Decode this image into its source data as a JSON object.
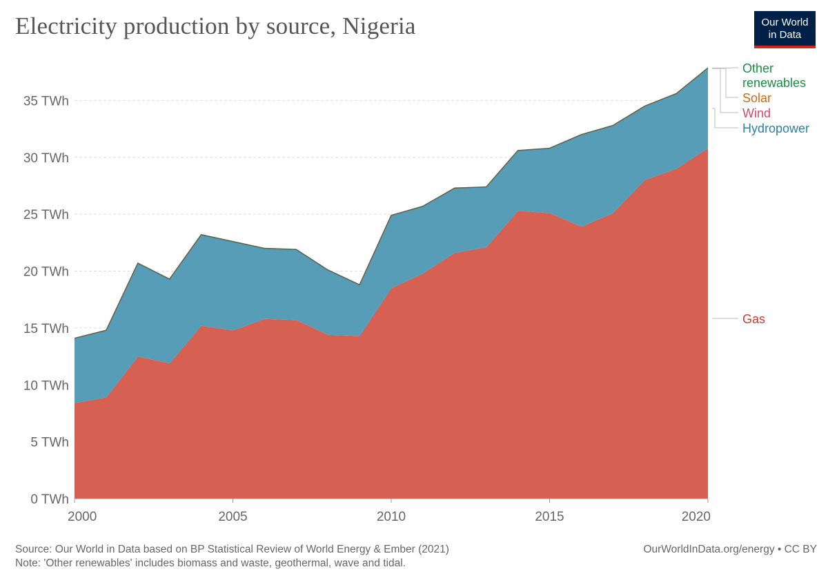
{
  "title": "Electricity production by source, Nigeria",
  "logo": {
    "line1": "Our World",
    "line2": "in Data"
  },
  "footer": {
    "source": "Source: Our World in Data based on BP Statistical Review of World Energy & Ember (2021)",
    "note": "Note: 'Other renewables' includes biomass and waste, geothermal, wave and tidal.",
    "url": "OurWorldInData.org/energy • CC BY"
  },
  "chart_data": {
    "type": "area",
    "stacked": true,
    "title": "Electricity production by source, Nigeria",
    "x": [
      2000,
      2001,
      2002,
      2003,
      2004,
      2005,
      2006,
      2007,
      2008,
      2009,
      2010,
      2011,
      2012,
      2013,
      2014,
      2015,
      2016,
      2017,
      2018,
      2019,
      2020
    ],
    "xticks": [
      2000,
      2005,
      2010,
      2015,
      2020
    ],
    "yticks": [
      0,
      5,
      10,
      15,
      20,
      25,
      30,
      35
    ],
    "ylim": [
      0,
      38
    ],
    "yunit": " TWh",
    "series": [
      {
        "name": "Gas",
        "color": "#d66152",
        "label_color": "#c83d2e",
        "values": [
          8.4,
          8.9,
          12.5,
          11.9,
          15.2,
          14.8,
          15.8,
          15.7,
          14.4,
          14.3,
          18.5,
          19.8,
          21.6,
          22.1,
          25.3,
          25.1,
          23.9,
          25.1,
          28.0,
          29.0,
          30.8
        ]
      },
      {
        "name": "Hydropower",
        "color": "#579db8",
        "label_color": "#2d80a3",
        "values": [
          5.7,
          5.9,
          8.2,
          7.4,
          8.0,
          7.8,
          6.2,
          6.2,
          5.7,
          4.5,
          6.4,
          5.9,
          5.7,
          5.3,
          5.3,
          5.7,
          8.1,
          7.7,
          6.5,
          6.6,
          7.0
        ]
      },
      {
        "name": "Wind",
        "color": "#e05d7a",
        "label_color": "#d4476a",
        "values": [
          0,
          0,
          0,
          0,
          0,
          0,
          0,
          0,
          0,
          0,
          0,
          0,
          0,
          0,
          0,
          0,
          0,
          0,
          0,
          0,
          0.01
        ]
      },
      {
        "name": "Solar",
        "color": "#e08a2c",
        "label_color": "#c86e17",
        "values": [
          0,
          0,
          0,
          0,
          0,
          0,
          0,
          0,
          0,
          0,
          0,
          0,
          0,
          0,
          0,
          0,
          0,
          0,
          0,
          0,
          0.02
        ]
      },
      {
        "name": "Other renewables",
        "color": "#2e9c5a",
        "label_color": "#1e8a44",
        "values": [
          0,
          0,
          0,
          0,
          0,
          0,
          0,
          0,
          0,
          0,
          0,
          0,
          0,
          0,
          0,
          0,
          0,
          0,
          0,
          0,
          0.03
        ]
      }
    ],
    "legend": [
      {
        "lines": [
          "Other",
          "renewables"
        ],
        "series": "Other renewables"
      },
      {
        "lines": [
          "Solar"
        ],
        "series": "Solar"
      },
      {
        "lines": [
          "Wind"
        ],
        "series": "Wind"
      },
      {
        "lines": [
          "Hydropower"
        ],
        "series": "Hydropower"
      },
      {
        "lines": [
          "Gas"
        ],
        "series": "Gas"
      }
    ]
  }
}
